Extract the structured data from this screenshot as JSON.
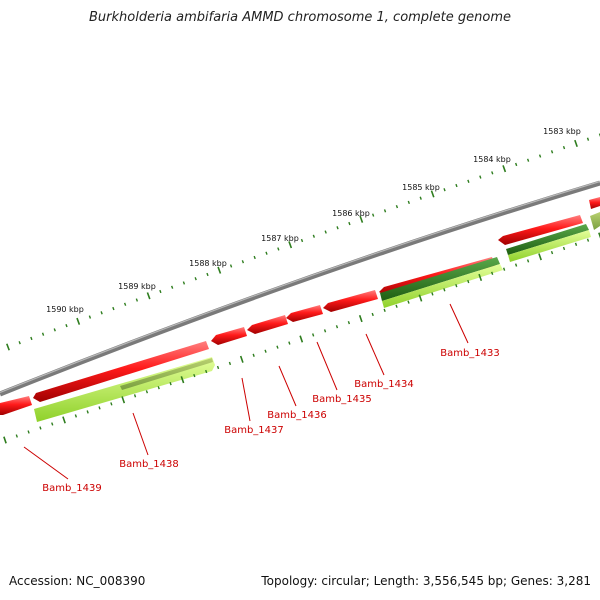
{
  "title": "Burkholderia ambifaria AMMD chromosome 1, complete genome",
  "footer": {
    "accession": "Accession: NC_008390",
    "summary": "Topology: circular; Length: 3,556,545 bp; Genes: 3,281"
  },
  "scale_labels": [
    "1583 kbp",
    "1584 kbp",
    "1585 kbp",
    "1586 kbp",
    "1587 kbp",
    "1588 kbp",
    "1589 kbp",
    "1590 kbp"
  ],
  "gene_labels": [
    "Bamb_1433",
    "Bamb_1434",
    "Bamb_1435",
    "Bamb_1436",
    "Bamb_1437",
    "Bamb_1438",
    "Bamb_1439"
  ],
  "colors": {
    "backbone": "#808080",
    "reverse_gene": "#e00000",
    "forward_dark": "#2e7d1e",
    "forward_light": "#a8e83a",
    "tick": "#2e7d1e",
    "label": "#cc0000"
  }
}
